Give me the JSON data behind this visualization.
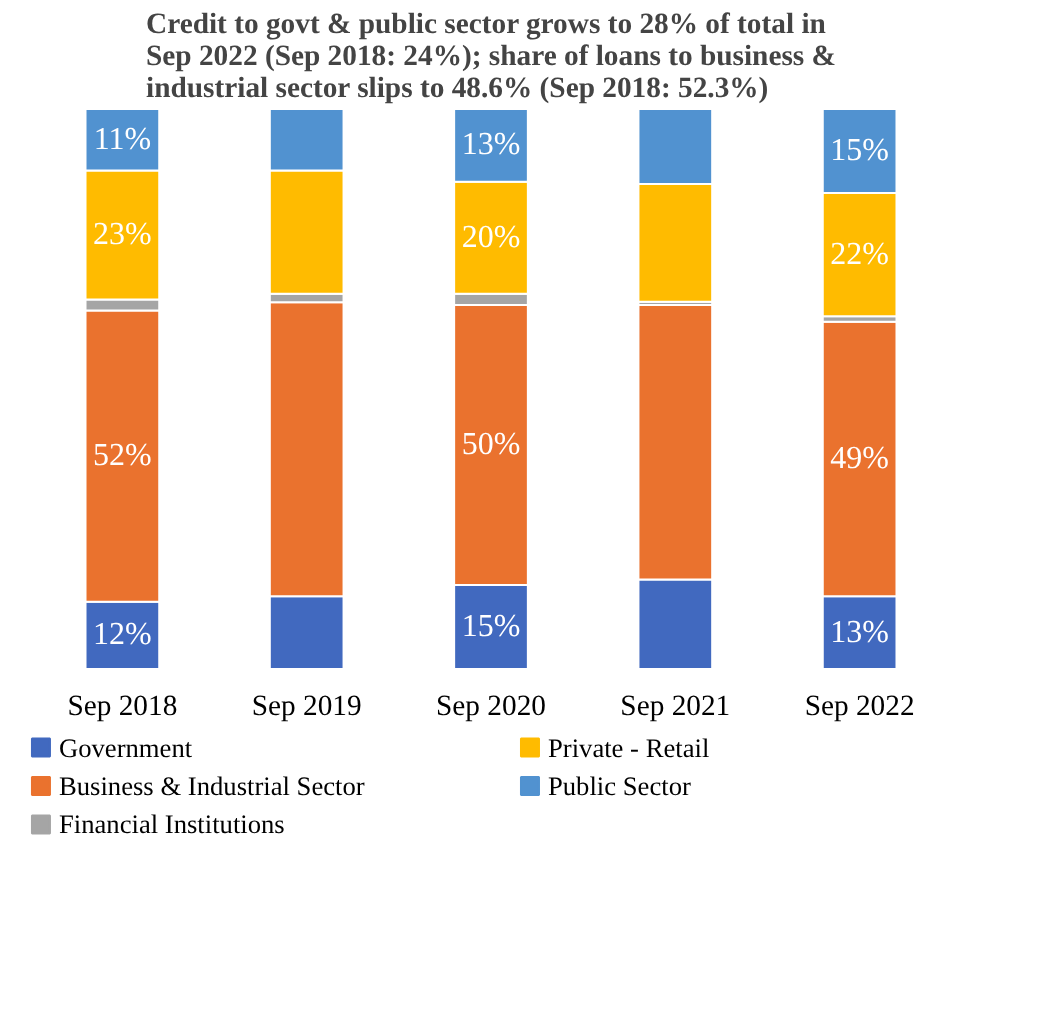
{
  "chart_data": {
    "type": "bar",
    "stacked": true,
    "title": "Credit to govt & public sector grows to 28% of total in Sep 2022 (Sep 2018: 24%); share of loans to business & industrial sector slips to 48.6% (Sep 2018: 52.3%)",
    "categories": [
      "Sep 2018",
      "Sep 2019",
      "Sep 2020",
      "Sep 2021",
      "Sep 2022"
    ],
    "ylim": [
      0,
      100
    ],
    "tick_labels": "x",
    "grid": false,
    "legend": "bottom",
    "series": [
      {
        "name": "Government",
        "color": "#4169bf",
        "values": [
          12,
          13,
          15,
          16,
          13
        ],
        "value_labels": [
          "12%",
          null,
          "15%",
          null,
          "13%"
        ]
      },
      {
        "name": "Business & Industrial Sector",
        "color": "#ea722e",
        "values": [
          52,
          52.5,
          50,
          49,
          49
        ],
        "value_labels": [
          "52%",
          null,
          "50%",
          null,
          "49%"
        ]
      },
      {
        "name": "Financial Institutions",
        "color": "#a5a5a5",
        "values": [
          2,
          1.5,
          2,
          0.6,
          1
        ],
        "value_labels": [
          null,
          null,
          null,
          null,
          null
        ]
      },
      {
        "name": "Private - Retail",
        "color": "#ffbb00",
        "values": [
          23,
          22,
          20,
          21,
          22
        ],
        "value_labels": [
          "23%",
          null,
          "20%",
          null,
          "22%"
        ]
      },
      {
        "name": "Public Sector",
        "color": "#5192d0",
        "values": [
          11,
          11,
          13,
          13.4,
          15
        ],
        "value_labels": [
          "11%",
          null,
          "13%",
          null,
          "15%"
        ]
      }
    ]
  }
}
